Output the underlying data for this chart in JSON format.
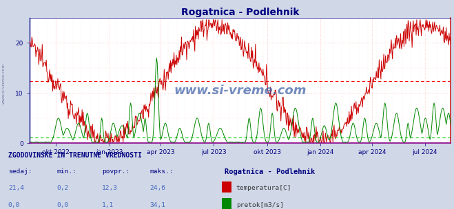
{
  "title": "Rogatnica - Podlehnik",
  "title_color": "#000080",
  "bg_color": "#d0d8e8",
  "plot_bg_color": "#ffffff",
  "fig_width": 6.59,
  "fig_height": 3.04,
  "dpi": 100,
  "n_days": 730,
  "ymin": 0,
  "ymax": 25,
  "avg_temp": 12.3,
  "avg_flow": 1.1,
  "temp_color": "#cc0000",
  "flow_color": "#008800",
  "axis_color": "#000080",
  "tick_color": "#000080",
  "grid_color": "#ffb0b0",
  "spine_bottom_color": "#880088",
  "spine_right_color": "#cc2222",
  "dashed_temp_color": "#ff0000",
  "dashed_flow_color": "#00cc00",
  "watermark": "www.si-vreme.com",
  "watermark_color": "#4466aa",
  "x_tick_labels": [
    "okt 2022",
    "jan 2023",
    "apr 2023",
    "jul 2023",
    "okt 2023",
    "jan 2024",
    "apr 2024",
    "jul 2024"
  ],
  "x_tick_positions": [
    46,
    138,
    227,
    319,
    411,
    503,
    593,
    684
  ],
  "y_tick_positions": [
    0,
    10,
    20
  ],
  "legend_title": "Rogatnica - Podlehnik",
  "legend_temp": "temperatura[C]",
  "legend_flow": "pretok[m3/s]",
  "table_header": "ZGODOVINSKE IN TRENUTNE VREDNOSTI",
  "col_headers": [
    "sedaj:",
    "min.:",
    "povpr.:",
    "maks.:"
  ],
  "row_temp": [
    "21,4",
    "0,2",
    "12,3",
    "24,6"
  ],
  "row_flow": [
    "0,0",
    "0,0",
    "1,1",
    "34,1"
  ],
  "temp_rect_color": "#cc0000",
  "flow_rect_color": "#008800",
  "table_text_color": "#000080",
  "table_value_color": "#4466bb",
  "table_label_color": "#333333"
}
